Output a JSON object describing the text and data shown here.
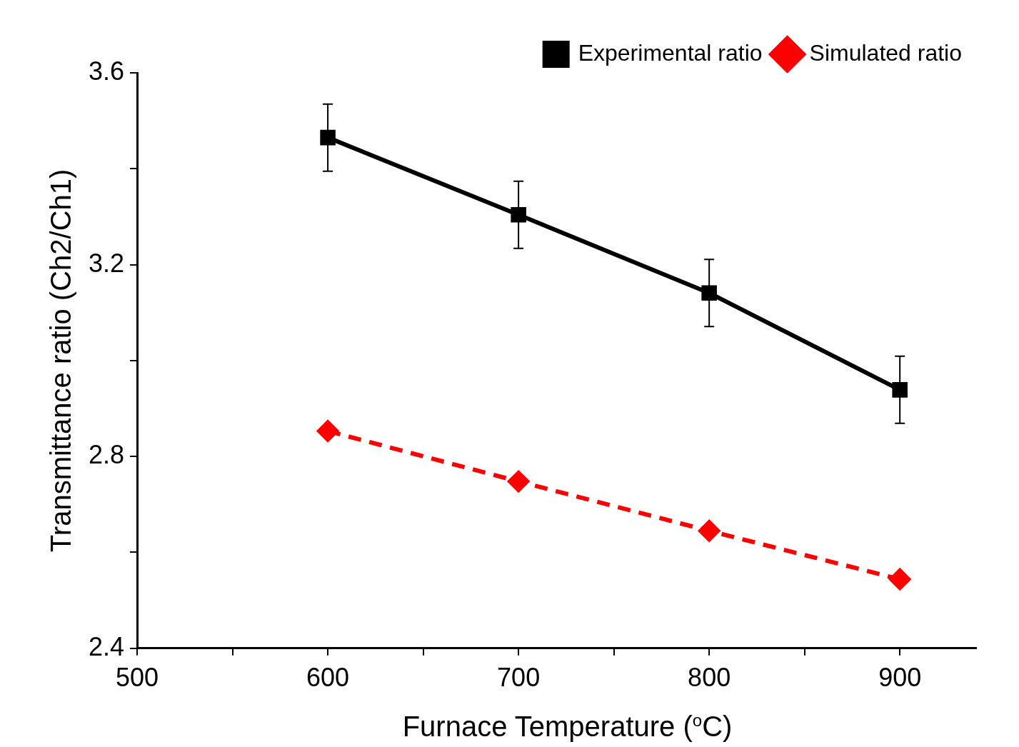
{
  "chart_data": {
    "type": "line",
    "xlabel": "Furnace Temperature ($^{o}$C)",
    "ylabel": "Transmittance ratio (Ch2/Ch1)",
    "x": [
      600,
      700,
      800,
      900
    ],
    "series": [
      {
        "name": "Experimental ratio",
        "color": "#000000",
        "values": [
          3.465,
          3.304,
          3.141,
          2.939
        ],
        "errors": [
          0.07,
          0.07,
          0.07,
          0.07
        ],
        "marker": "square",
        "line_style": "solid"
      },
      {
        "name": "Simulated ratio",
        "color": "#ff0000",
        "values": [
          2.853,
          2.748,
          2.645,
          2.544
        ],
        "marker": "diamond",
        "line_style": "dashed"
      }
    ],
    "xlim": [
      500,
      940
    ],
    "xticks": [
      500,
      {
        "value": 550,
        "label": null
      },
      600,
      {
        "value": 650,
        "label": null
      },
      700,
      {
        "value": 750,
        "label": null
      },
      800,
      {
        "value": 850,
        "label": null
      },
      900
    ],
    "ylim": [
      2.4,
      3.6
    ],
    "yticks": [
      2.4,
      {
        "value": 2.6,
        "label": null
      },
      2.8,
      {
        "value": 3.0,
        "label": null
      },
      3.2,
      {
        "value": 3.4,
        "label": null
      },
      3.6
    ],
    "grid": false,
    "legend": "top right"
  }
}
